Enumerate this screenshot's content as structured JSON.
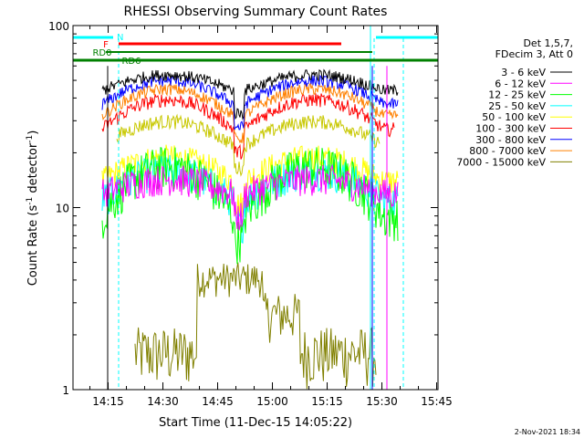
{
  "chart_data": {
    "type": "line",
    "title": "RHESSI Observing Summary Count Rates",
    "xlabel": "Start Time (11-Dec-15 14:05:22)",
    "ylabel": "Count Rate (s",
    "ylabel_sup1": "-1",
    "ylabel_mid": " detector",
    "ylabel_sup2": "-1",
    "ylabel_end": ")",
    "yscale": "log",
    "ylim": [
      1,
      100
    ],
    "xlim_minutes": [
      0,
      100
    ],
    "x_ticks": [
      "14:15",
      "14:30",
      "14:45",
      "15:00",
      "15:15",
      "15:30",
      "15:45"
    ],
    "x_tick_minutes": [
      9.63,
      24.63,
      39.63,
      54.63,
      69.63,
      84.63,
      99.63
    ],
    "y_ticks": [
      {
        "label": "1",
        "value": 1
      },
      {
        "label": "10",
        "value": 10
      },
      {
        "label": "100",
        "value": 100
      }
    ],
    "legend_header": [
      "Det 1,5,7,",
      "FDecim 3, Att 0"
    ],
    "legend_position": "right",
    "series": [
      {
        "name": "3 - 6 keV",
        "color": "#000000",
        "level": 48
      },
      {
        "name": "6 - 12 keV",
        "color": "#ff00ff",
        "level": 14
      },
      {
        "name": "12 - 25 keV",
        "color": "#00ff00",
        "level": 10
      },
      {
        "name": "25 - 50 keV",
        "color": "#00ffff",
        "level": 12
      },
      {
        "name": "50 - 100 keV",
        "color": "#ffff00",
        "level": 13
      },
      {
        "name": "100 - 300 keV",
        "color": "#ff0000",
        "level": 30
      },
      {
        "name": "300 - 800 keV",
        "color": "#0000ff",
        "level": 42
      },
      {
        "name": "800 - 7000 keV",
        "color": "#ff8000",
        "level": 36
      },
      {
        "name": "7000 - 15000 keV",
        "color": "#808000",
        "level": 2
      }
    ],
    "extra_series_color": "#c8c800",
    "annotations": [
      {
        "label": "N",
        "color": "#00ffff"
      },
      {
        "label": "F",
        "color": "#ff0000"
      },
      {
        "label": "RD0",
        "color": "#008000"
      },
      {
        "label": "RD6",
        "color": "#008000"
      }
    ],
    "timestamp": "2-Nov-2021 18:34"
  }
}
